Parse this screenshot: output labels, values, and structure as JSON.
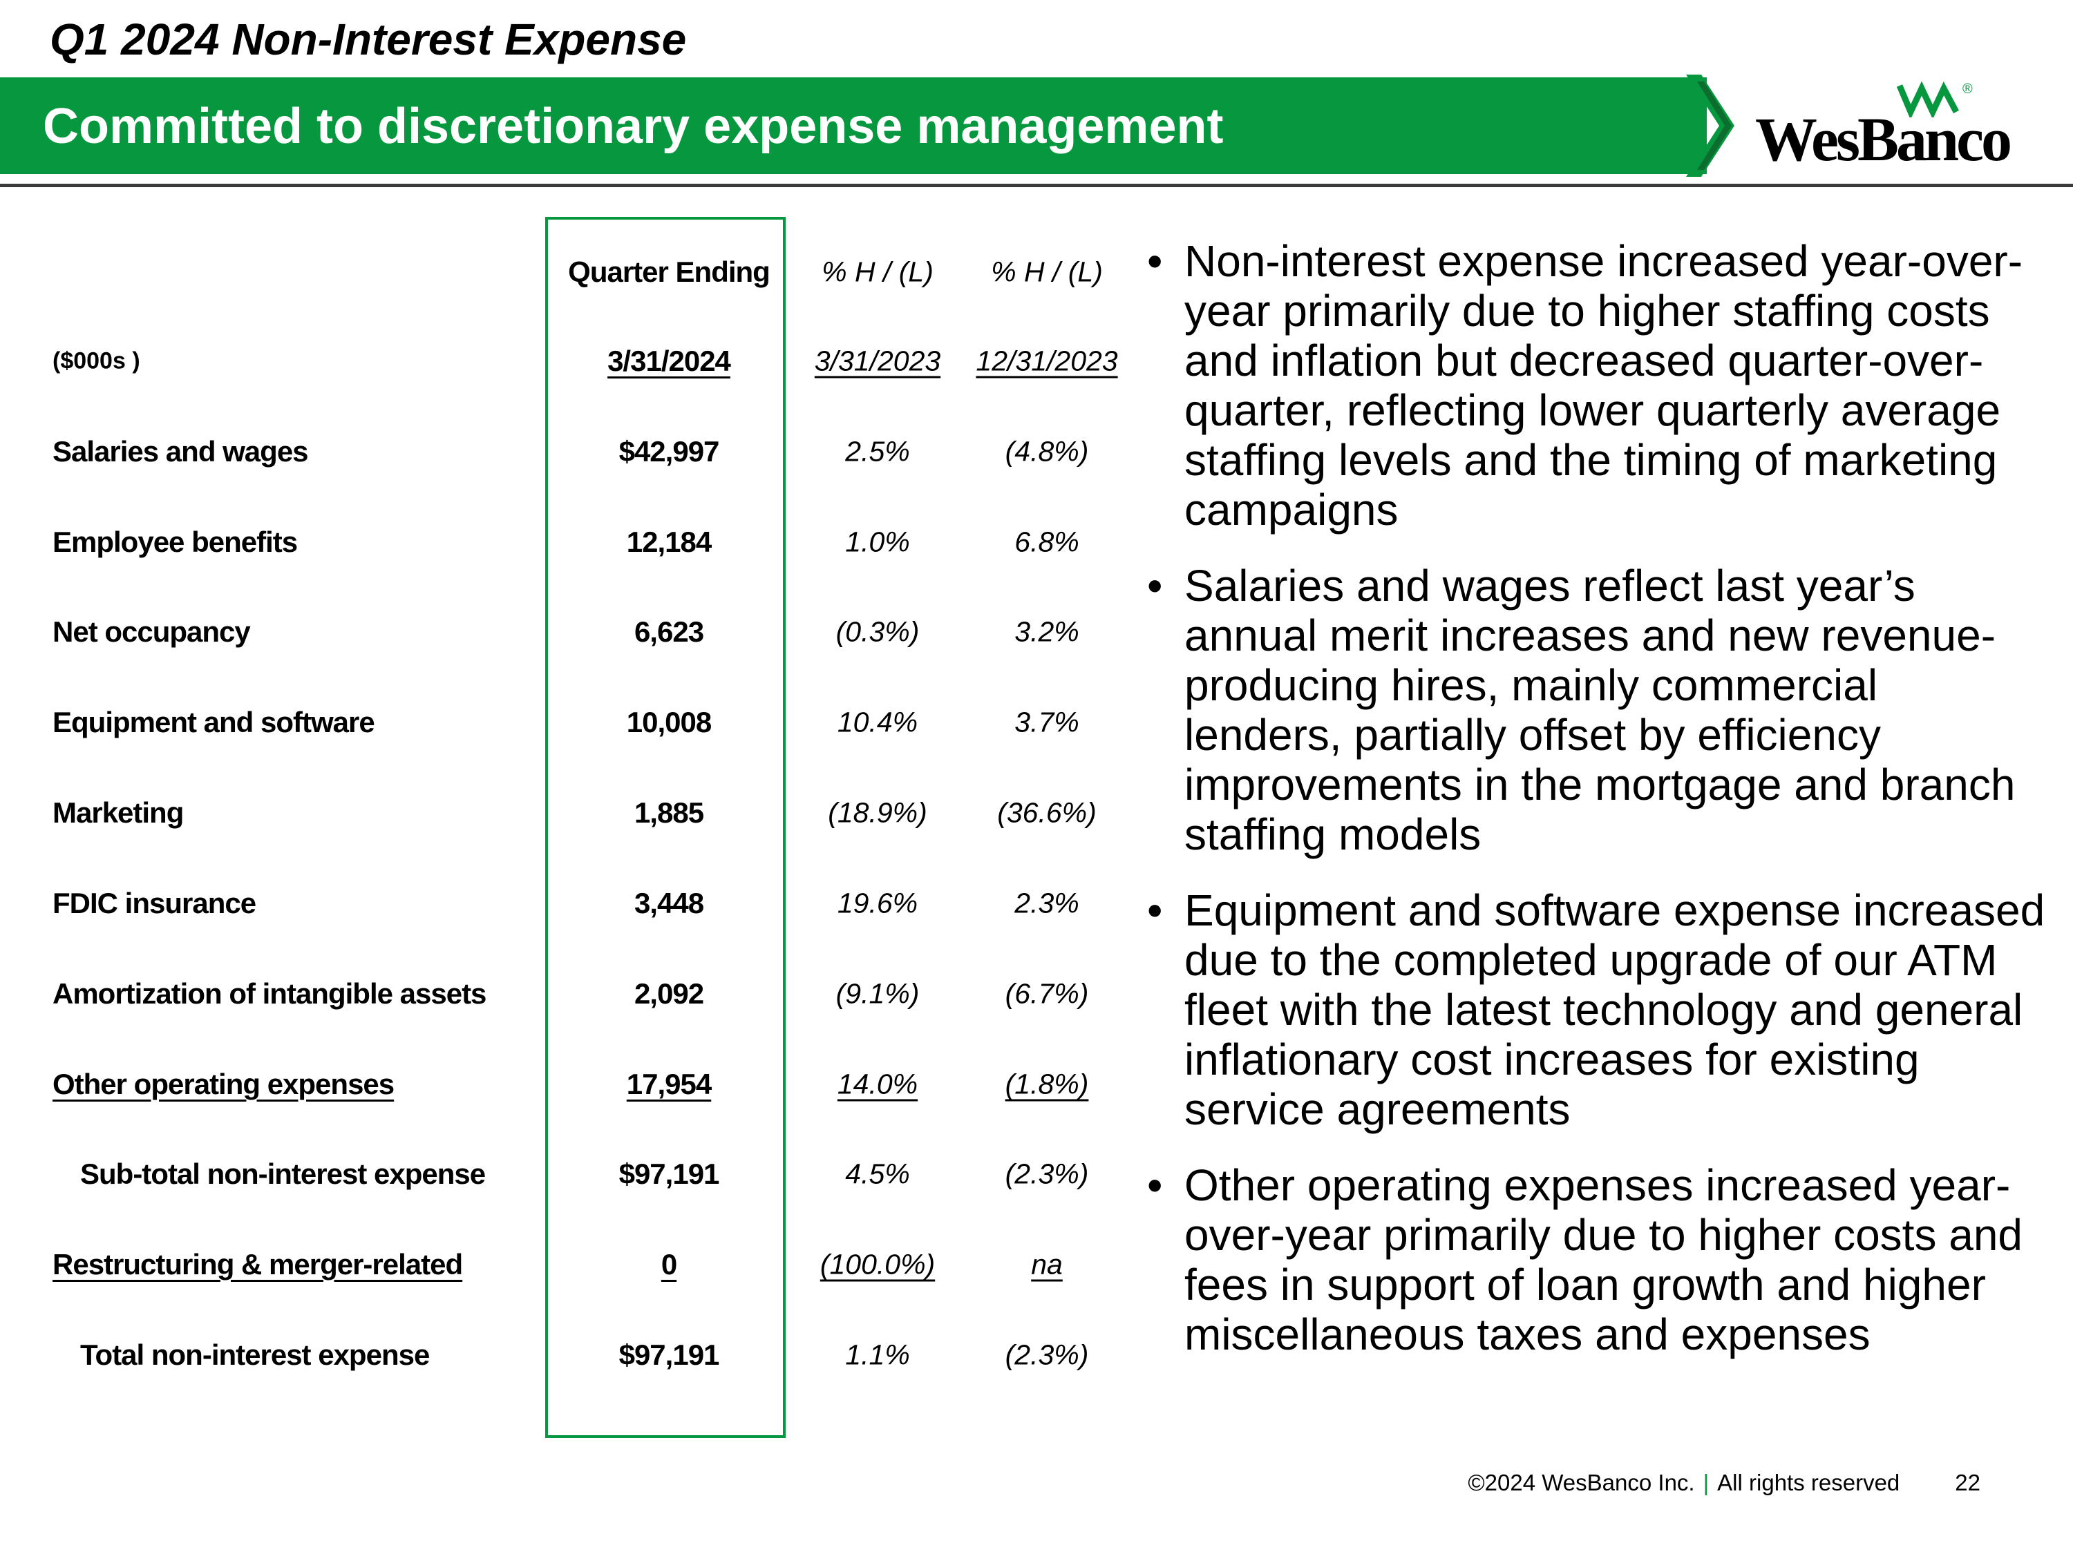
{
  "header": {
    "title": "Q1 2024 Non-Interest Expense",
    "subtitle": "Committed to discretionary expense management",
    "logo_text": "WesBanco",
    "logo_reg": "®"
  },
  "colors": {
    "brand_green": "#07973f",
    "rule": "#3b3b3b"
  },
  "table": {
    "col_headers": {
      "quarter": "Quarter Ending",
      "pct1": "% H / (L)",
      "pct2": "% H / (L)"
    },
    "units": "($000s )",
    "dates": {
      "quarter": "3/31/2024",
      "pct1": "3/31/2023",
      "pct2": "12/31/2023"
    },
    "rows": [
      {
        "label": "Salaries and wages",
        "value": "$42,997",
        "pct1": "2.5%",
        "pct2": "(4.8%)"
      },
      {
        "label": "Employee benefits",
        "value": "12,184",
        "pct1": "1.0%",
        "pct2": "6.8%"
      },
      {
        "label": "Net occupancy",
        "value": "6,623",
        "pct1": "(0.3%)",
        "pct2": "3.2%"
      },
      {
        "label": "Equipment and software",
        "value": "10,008",
        "pct1": "10.4%",
        "pct2": "3.7%"
      },
      {
        "label": "Marketing",
        "value": "1,885",
        "pct1": "(18.9%)",
        "pct2": "(36.6%)"
      },
      {
        "label": "FDIC insurance",
        "value": "3,448",
        "pct1": "19.6%",
        "pct2": "2.3%"
      },
      {
        "label": "Amortization of intangible assets",
        "value": "2,092",
        "pct1": "(9.1%)",
        "pct2": "(6.7%)"
      },
      {
        "label": "Other operating expenses",
        "value": "17,954",
        "pct1": "14.0%",
        "pct2": "(1.8%)"
      },
      {
        "label": "Sub-total non-interest expense",
        "value": "$97,191",
        "pct1": "4.5%",
        "pct2": "(2.3%)"
      },
      {
        "label": "Restructuring & merger-related",
        "value": "0",
        "pct1": "(100.0%)",
        "pct2": "na"
      },
      {
        "label": "Total non-interest expense",
        "value": "$97,191",
        "pct1": "1.1%",
        "pct2": "(2.3%)"
      }
    ]
  },
  "bullets": [
    "Non-interest expense increased year-over-year primarily due to higher staffing costs and inflation but decreased quarter-over-quarter, reflecting lower quarterly average staffing levels and the timing of marketing campaigns",
    "Salaries and wages reflect last year’s annual merit increases and new revenue-producing hires, mainly commercial lenders, partially offset by efficiency improvements in the mortgage and branch staffing models",
    "Equipment and software expense increased due to the completed upgrade of our ATM fleet with the latest technology and general inflationary cost increases for existing service agreements",
    "Other operating expenses increased year-over-year primarily due to higher costs and fees in support of loan growth and higher miscellaneous taxes and expenses"
  ],
  "footer": {
    "copyright": "©2024 WesBanco Inc.",
    "separator": "|",
    "rights": "All rights reserved",
    "page_number": "22"
  }
}
